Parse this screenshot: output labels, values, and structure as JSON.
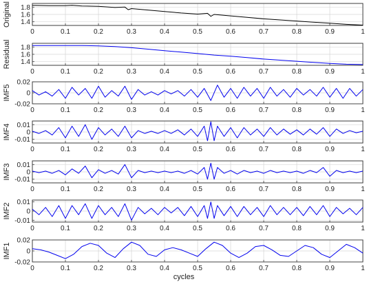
{
  "chart_data": [
    {
      "type": "line",
      "ylabel": "Original",
      "xlim": [
        0,
        1
      ],
      "ylim": [
        1.3,
        1.9
      ],
      "yticks": [
        1.4,
        1.6,
        1.8
      ],
      "ytick_labels": [
        "1.4",
        "1.6",
        "1.8"
      ],
      "xticks": [
        0,
        0.1,
        0.2,
        0.3,
        0.4,
        0.5,
        0.6,
        0.7,
        0.8,
        0.9,
        1
      ],
      "xtick_labels": [
        "0",
        "0.1",
        "0.2",
        "0.3",
        "0.4",
        "0.5",
        "0.6",
        "0.7",
        "0.8",
        "0.9",
        "1"
      ],
      "grid": true,
      "color": "#000000",
      "x": [
        0,
        0.05,
        0.1,
        0.12,
        0.15,
        0.2,
        0.25,
        0.28,
        0.29,
        0.3,
        0.35,
        0.4,
        0.45,
        0.5,
        0.53,
        0.54,
        0.55,
        0.6,
        0.65,
        0.7,
        0.75,
        0.8,
        0.85,
        0.9,
        0.95,
        1
      ],
      "y": [
        1.85,
        1.84,
        1.84,
        1.85,
        1.83,
        1.82,
        1.79,
        1.8,
        1.73,
        1.76,
        1.72,
        1.68,
        1.64,
        1.61,
        1.63,
        1.55,
        1.6,
        1.56,
        1.52,
        1.48,
        1.45,
        1.42,
        1.39,
        1.36,
        1.33,
        1.31
      ]
    },
    {
      "type": "line",
      "ylabel": "Residual",
      "xlim": [
        0,
        1
      ],
      "ylim": [
        1.3,
        1.9
      ],
      "yticks": [
        1.4,
        1.6,
        1.8
      ],
      "ytick_labels": [
        "1.4",
        "1.6",
        "1.8"
      ],
      "xticks": [
        0,
        0.1,
        0.2,
        0.3,
        0.4,
        0.5,
        0.6,
        0.7,
        0.8,
        0.9,
        1
      ],
      "xtick_labels": [
        "0",
        "0.1",
        "0.2",
        "0.3",
        "0.4",
        "0.5",
        "0.6",
        "0.7",
        "0.8",
        "0.9",
        "1"
      ],
      "grid": true,
      "color": "#0000ee",
      "x": [
        0,
        0.05,
        0.1,
        0.15,
        0.2,
        0.25,
        0.3,
        0.35,
        0.4,
        0.45,
        0.5,
        0.55,
        0.6,
        0.65,
        0.7,
        0.75,
        0.8,
        0.85,
        0.9,
        0.95,
        1
      ],
      "y": [
        1.84,
        1.84,
        1.84,
        1.84,
        1.83,
        1.81,
        1.78,
        1.74,
        1.7,
        1.66,
        1.62,
        1.58,
        1.55,
        1.51,
        1.47,
        1.44,
        1.41,
        1.38,
        1.35,
        1.33,
        1.32
      ]
    },
    {
      "type": "line",
      "ylabel": "IMF5",
      "xlim": [
        0,
        1
      ],
      "ylim": [
        -0.02,
        0.02
      ],
      "yticks": [
        -0.02,
        0,
        0.02
      ],
      "ytick_labels": [
        "-0.02",
        "0",
        "0.02"
      ],
      "xticks": [
        0,
        0.1,
        0.2,
        0.3,
        0.4,
        0.5,
        0.6,
        0.7,
        0.8,
        0.9,
        1
      ],
      "xtick_labels": [
        "0",
        "0.1",
        "0.2",
        "0.3",
        "0.4",
        "0.5",
        "0.6",
        "0.7",
        "0.8",
        "0.9",
        "1"
      ],
      "grid": true,
      "color": "#0000ee",
      "x": [
        0,
        0.02,
        0.04,
        0.06,
        0.08,
        0.1,
        0.12,
        0.14,
        0.16,
        0.18,
        0.2,
        0.22,
        0.24,
        0.26,
        0.28,
        0.3,
        0.32,
        0.34,
        0.36,
        0.38,
        0.4,
        0.42,
        0.44,
        0.46,
        0.48,
        0.5,
        0.52,
        0.54,
        0.56,
        0.58,
        0.6,
        0.62,
        0.64,
        0.66,
        0.68,
        0.7,
        0.72,
        0.74,
        0.76,
        0.78,
        0.8,
        0.82,
        0.84,
        0.86,
        0.88,
        0.9,
        0.92,
        0.94,
        0.96,
        0.98,
        1
      ],
      "y": [
        0.004,
        -0.004,
        0.002,
        -0.006,
        0.006,
        -0.01,
        0.01,
        -0.004,
        0.008,
        -0.01,
        0.012,
        -0.008,
        0.004,
        -0.006,
        0.012,
        -0.012,
        0.006,
        -0.004,
        0.002,
        -0.004,
        0.004,
        -0.002,
        0.004,
        -0.006,
        0.006,
        -0.008,
        0.008,
        -0.014,
        0.014,
        -0.008,
        0.008,
        -0.01,
        0.01,
        -0.006,
        0.008,
        -0.01,
        0.01,
        -0.006,
        0.006,
        -0.008,
        0.008,
        -0.004,
        0.006,
        -0.006,
        0.01,
        -0.008,
        0.008,
        -0.01,
        0.008,
        -0.006,
        0.006
      ]
    },
    {
      "type": "line",
      "ylabel": "IMF4",
      "xlim": [
        0,
        1
      ],
      "ylim": [
        -0.015,
        0.015
      ],
      "yticks": [
        -0.01,
        0,
        0.01
      ],
      "ytick_labels": [
        "-0.01",
        "0",
        "0.01"
      ],
      "xticks": [
        0,
        0.1,
        0.2,
        0.3,
        0.4,
        0.5,
        0.6,
        0.7,
        0.8,
        0.9,
        1
      ],
      "xtick_labels": [
        "0",
        "0.1",
        "0.2",
        "0.3",
        "0.4",
        "0.5",
        "0.6",
        "0.7",
        "0.8",
        "0.9",
        "1"
      ],
      "grid": true,
      "color": "#0000ee",
      "x": [
        0,
        0.02,
        0.04,
        0.06,
        0.08,
        0.1,
        0.12,
        0.14,
        0.16,
        0.18,
        0.2,
        0.22,
        0.24,
        0.26,
        0.28,
        0.3,
        0.32,
        0.34,
        0.36,
        0.38,
        0.4,
        0.42,
        0.44,
        0.46,
        0.48,
        0.5,
        0.52,
        0.53,
        0.54,
        0.55,
        0.56,
        0.58,
        0.6,
        0.62,
        0.64,
        0.66,
        0.68,
        0.7,
        0.72,
        0.74,
        0.76,
        0.78,
        0.8,
        0.82,
        0.84,
        0.86,
        0.88,
        0.9,
        0.92,
        0.94,
        0.96,
        0.98,
        1
      ],
      "y": [
        0.001,
        -0.002,
        0.002,
        -0.004,
        0.006,
        -0.008,
        0.008,
        -0.006,
        0.01,
        -0.01,
        0.006,
        -0.004,
        0.004,
        -0.006,
        0.008,
        -0.008,
        0.002,
        -0.002,
        0.001,
        -0.002,
        0.002,
        -0.002,
        0.003,
        -0.004,
        0.004,
        -0.006,
        0.008,
        -0.012,
        0.014,
        -0.012,
        0.008,
        -0.006,
        0.006,
        -0.008,
        0.006,
        -0.004,
        0.004,
        -0.006,
        0.006,
        -0.004,
        0.004,
        -0.003,
        0.003,
        -0.004,
        0.004,
        -0.003,
        0.006,
        -0.006,
        0.004,
        -0.002,
        0.002,
        -0.001,
        0.001
      ]
    },
    {
      "type": "line",
      "ylabel": "IMF3",
      "xlim": [
        0,
        1
      ],
      "ylim": [
        -0.015,
        0.015
      ],
      "yticks": [
        -0.01,
        0,
        0.01
      ],
      "ytick_labels": [
        "-0.01",
        "0",
        "0.01"
      ],
      "xticks": [
        0,
        0.1,
        0.2,
        0.3,
        0.4,
        0.5,
        0.6,
        0.7,
        0.8,
        0.9,
        1
      ],
      "xtick_labels": [
        "0",
        "0.1",
        "0.2",
        "0.3",
        "0.4",
        "0.5",
        "0.6",
        "0.7",
        "0.8",
        "0.9",
        "1"
      ],
      "grid": true,
      "color": "#0000ee",
      "x": [
        0,
        0.02,
        0.04,
        0.06,
        0.08,
        0.1,
        0.12,
        0.14,
        0.16,
        0.18,
        0.2,
        0.22,
        0.24,
        0.26,
        0.28,
        0.3,
        0.32,
        0.34,
        0.36,
        0.38,
        0.4,
        0.42,
        0.44,
        0.46,
        0.48,
        0.5,
        0.52,
        0.53,
        0.54,
        0.55,
        0.56,
        0.58,
        0.6,
        0.62,
        0.64,
        0.66,
        0.68,
        0.7,
        0.72,
        0.74,
        0.76,
        0.78,
        0.8,
        0.82,
        0.84,
        0.86,
        0.88,
        0.9,
        0.92,
        0.94,
        0.96,
        0.98,
        1
      ],
      "y": [
        0.001,
        -0.001,
        0.001,
        -0.002,
        0.002,
        -0.004,
        0.004,
        -0.002,
        0.008,
        -0.008,
        0.003,
        -0.002,
        0.002,
        -0.003,
        0.01,
        -0.008,
        0.002,
        -0.001,
        0.001,
        -0.001,
        0.001,
        -0.001,
        0.001,
        -0.002,
        0.002,
        -0.003,
        0.006,
        -0.01,
        0.012,
        -0.01,
        0.006,
        -0.002,
        0.002,
        -0.003,
        0.002,
        -0.001,
        0.001,
        -0.002,
        0.002,
        -0.001,
        0.001,
        -0.001,
        0.001,
        -0.002,
        0.002,
        -0.001,
        0.006,
        -0.006,
        0.002,
        -0.001,
        0.001,
        -0.001,
        0.001
      ]
    },
    {
      "type": "line",
      "ylabel": "IMF2",
      "xlim": [
        0,
        1
      ],
      "ylim": [
        -0.012,
        0.012
      ],
      "yticks": [
        -0.01,
        0,
        0.01
      ],
      "ytick_labels": [
        "-0.01",
        "0",
        "0.01"
      ],
      "xticks": [
        0,
        0.1,
        0.2,
        0.3,
        0.4,
        0.5,
        0.6,
        0.7,
        0.8,
        0.9,
        1
      ],
      "xtick_labels": [
        "0",
        "0.1",
        "0.2",
        "0.3",
        "0.4",
        "0.5",
        "0.6",
        "0.7",
        "0.8",
        "0.9",
        "1"
      ],
      "grid": true,
      "color": "#0000ee",
      "x": [
        0,
        0.02,
        0.04,
        0.06,
        0.08,
        0.1,
        0.12,
        0.14,
        0.16,
        0.18,
        0.2,
        0.22,
        0.24,
        0.26,
        0.28,
        0.3,
        0.32,
        0.34,
        0.36,
        0.38,
        0.4,
        0.42,
        0.44,
        0.46,
        0.48,
        0.5,
        0.52,
        0.53,
        0.54,
        0.55,
        0.56,
        0.58,
        0.6,
        0.62,
        0.64,
        0.66,
        0.68,
        0.7,
        0.72,
        0.74,
        0.76,
        0.78,
        0.8,
        0.82,
        0.84,
        0.86,
        0.88,
        0.9,
        0.92,
        0.94,
        0.96,
        0.98,
        1
      ],
      "y": [
        0.002,
        -0.004,
        0.004,
        -0.006,
        0.006,
        -0.008,
        0.006,
        -0.004,
        0.008,
        -0.008,
        0.006,
        -0.004,
        0.004,
        -0.006,
        0.008,
        -0.01,
        0.004,
        -0.003,
        0.003,
        -0.004,
        0.004,
        -0.002,
        0.004,
        -0.005,
        0.005,
        -0.006,
        0.006,
        -0.008,
        0.01,
        -0.008,
        0.006,
        -0.005,
        0.005,
        -0.006,
        0.005,
        -0.004,
        0.004,
        -0.006,
        0.006,
        -0.004,
        0.004,
        -0.004,
        0.004,
        -0.005,
        0.005,
        -0.004,
        0.006,
        -0.006,
        0.004,
        -0.003,
        0.003,
        -0.004,
        0.004
      ]
    },
    {
      "type": "line",
      "ylabel": "IMF1",
      "xlabel": "cycles",
      "xlim": [
        0,
        1
      ],
      "ylim": [
        -0.02,
        0.02
      ],
      "yticks": [
        -0.02,
        0,
        0.02
      ],
      "ytick_labels": [
        "-0.02",
        "0",
        "0.02"
      ],
      "xticks": [
        0,
        0.1,
        0.2,
        0.3,
        0.4,
        0.5,
        0.6,
        0.7,
        0.8,
        0.9,
        1
      ],
      "xtick_labels": [
        "0",
        "0.1",
        "0.2",
        "0.3",
        "0.4",
        "0.5",
        "0.6",
        "0.7",
        "0.8",
        "0.9",
        "1"
      ],
      "grid": true,
      "color": "#0000ee",
      "x": [
        0,
        0.025,
        0.05,
        0.075,
        0.1,
        0.125,
        0.15,
        0.175,
        0.2,
        0.225,
        0.25,
        0.275,
        0.3,
        0.325,
        0.35,
        0.375,
        0.4,
        0.425,
        0.45,
        0.475,
        0.5,
        0.525,
        0.55,
        0.575,
        0.6,
        0.625,
        0.65,
        0.675,
        0.7,
        0.725,
        0.75,
        0.775,
        0.8,
        0.825,
        0.85,
        0.875,
        0.9,
        0.925,
        0.95,
        0.975,
        1
      ],
      "y": [
        0.004,
        0.002,
        -0.002,
        -0.008,
        -0.014,
        -0.006,
        0.008,
        0.014,
        0.01,
        -0.004,
        -0.012,
        0.004,
        0.016,
        0.01,
        -0.006,
        -0.01,
        0.002,
        0.006,
        0.002,
        -0.004,
        -0.01,
        0.004,
        0.016,
        0.01,
        -0.004,
        -0.012,
        -0.004,
        0.008,
        0.01,
        0.002,
        -0.008,
        -0.01,
        0.0,
        0.01,
        0.006,
        -0.006,
        -0.012,
        0.0,
        0.012,
        0.006,
        -0.004
      ]
    }
  ]
}
